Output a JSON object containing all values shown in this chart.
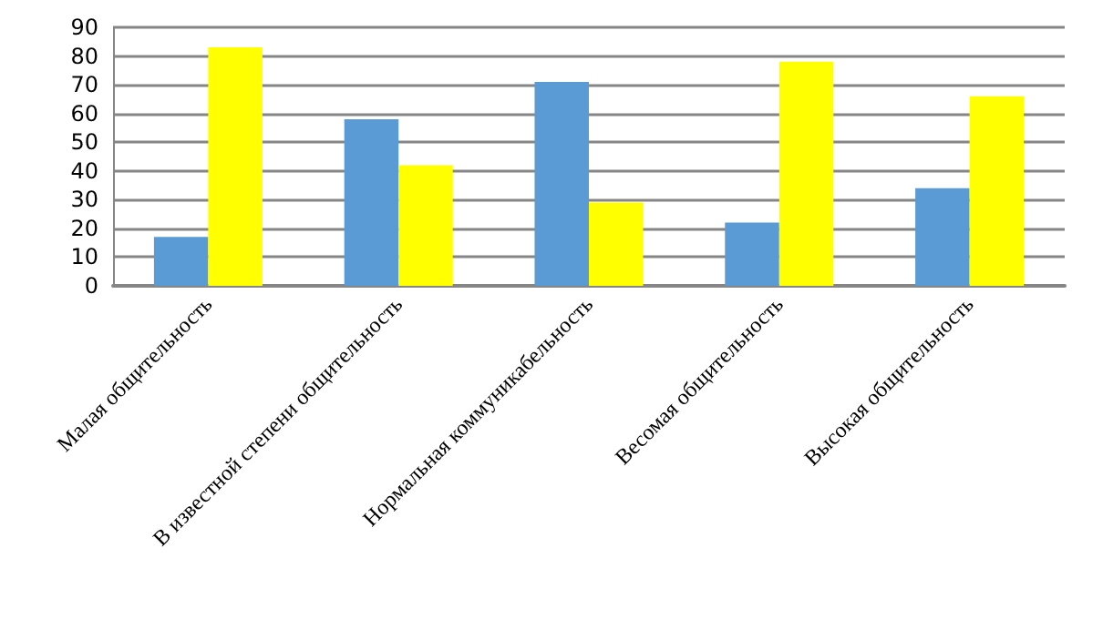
{
  "chart_data": {
    "type": "bar",
    "categories": [
      "Малая общительность",
      "В известной степени общительность",
      "Нормальная коммуникабельность",
      "Весомая общительность",
      "Высокая общительность"
    ],
    "series": [
      {
        "color": "#5b9bd5",
        "values": [
          17,
          58,
          71,
          22,
          34
        ]
      },
      {
        "color": "#ffff00",
        "values": [
          83,
          42,
          29,
          78,
          66
        ]
      }
    ],
    "ylim": [
      0,
      90
    ],
    "yticks": [
      0,
      10,
      20,
      30,
      40,
      50,
      60,
      70,
      80,
      90
    ],
    "grid": "y"
  }
}
